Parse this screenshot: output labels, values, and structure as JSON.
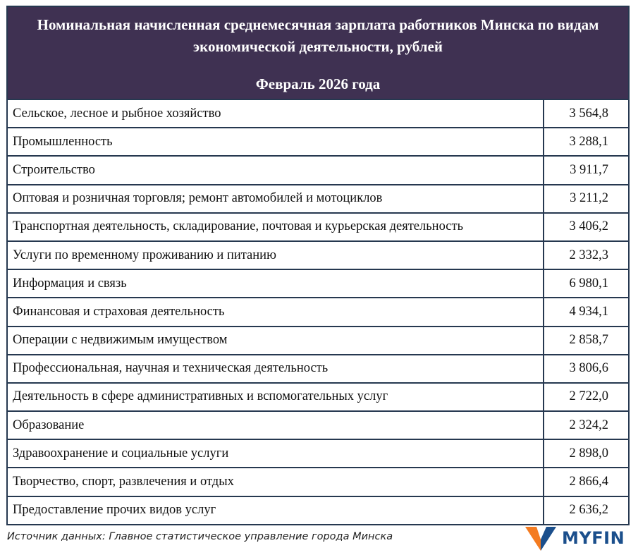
{
  "chart_data": {
    "type": "table",
    "title": "Номинальная начисленная среднемесячная зарплата работников Минска по видам экономической деятельности, рублей",
    "subtitle": "Февраль 2026 года",
    "rows": [
      {
        "label": "Сельское, лесное и рыбное хозяйство",
        "value": "3 564,8"
      },
      {
        "label": "Промышленность",
        "value": "3 288,1"
      },
      {
        "label": "Строительство",
        "value": "3 911,7"
      },
      {
        "label": "Оптовая и розничная торговля; ремонт автомобилей и мотоциклов",
        "value": "3 211,2"
      },
      {
        "label": "Транспортная деятельность, складирование, почтовая и курьерская деятельность",
        "value": "3 406,2"
      },
      {
        "label": "Услуги по временному проживанию и питанию",
        "value": "2 332,3"
      },
      {
        "label": "Информация и связь",
        "value": "6 980,1"
      },
      {
        "label": "Финансовая и страховая деятельность",
        "value": "4 934,1"
      },
      {
        "label": "Операции с недвижимым имуществом",
        "value": "2 858,7"
      },
      {
        "label": "Профессиональная, научная и техническая деятельность",
        "value": "3 806,6"
      },
      {
        "label": "Деятельность в сфере административных и вспомогательных услуг",
        "value": "2 722,0"
      },
      {
        "label": "Образование",
        "value": "2 324,2"
      },
      {
        "label": "Здравоохранение и социальные услуги",
        "value": "2 898,0"
      },
      {
        "label": "Творчество, спорт, развлечения и отдых",
        "value": "2 866,4"
      },
      {
        "label": "Предоставление прочих видов услуг",
        "value": "2 636,2"
      }
    ]
  },
  "source": "Источник данных: Главное статистическое управление города Минска",
  "logo": {
    "text": "MYFIN"
  },
  "colors": {
    "header_bg": "#3f3152",
    "border": "#263850",
    "logo_orange": "#f47b20",
    "logo_blue": "#1b4f8c"
  }
}
